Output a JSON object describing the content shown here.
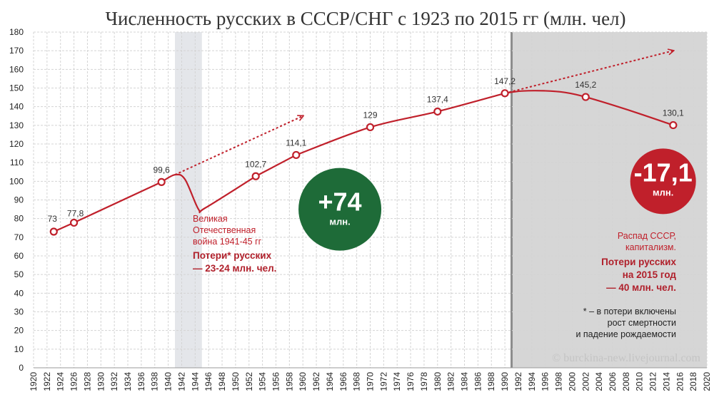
{
  "chart_data": {
    "type": "line",
    "title": "Численность русских в СССР/СНГ с 1923 по 2015 гг (млн. чел)",
    "xlim": [
      1920,
      2020
    ],
    "ylim": [
      0,
      180
    ],
    "x_ticks": [
      "1920",
      "1922",
      "1924",
      "1926",
      "1928",
      "1930",
      "1932",
      "1934",
      "1936",
      "1938",
      "1940",
      "1942",
      "1944",
      "1946",
      "1948",
      "1950",
      "1952",
      "1954",
      "1956",
      "1958",
      "1960",
      "1962",
      "1964",
      "1966",
      "1968",
      "1970",
      "1972",
      "1974",
      "1976",
      "1978",
      "1980",
      "1982",
      "1984",
      "1986",
      "1988",
      "1990",
      "1992",
      "1994",
      "1996",
      "1998",
      "2000",
      "2002",
      "2004",
      "2006",
      "2008",
      "2010",
      "2012",
      "2014",
      "2016",
      "2018",
      "2020"
    ],
    "y_ticks": [
      "0",
      "10",
      "20",
      "30",
      "40",
      "50",
      "60",
      "70",
      "80",
      "90",
      "100",
      "110",
      "120",
      "130",
      "140",
      "150",
      "160",
      "170",
      "180"
    ],
    "grid": true,
    "series": [
      {
        "points": [
          {
            "x": 1923,
            "y": 73,
            "label": "73"
          },
          {
            "x": 1926,
            "y": 77.8,
            "label": "77,8"
          },
          {
            "x": 1939,
            "y": 99.6,
            "label": "99,6"
          },
          {
            "x": 1953,
            "y": 102.7,
            "label": "102,7"
          },
          {
            "x": 1959,
            "y": 114.1,
            "label": "114,1"
          },
          {
            "x": 1970,
            "y": 129,
            "label": "129"
          },
          {
            "x": 1980,
            "y": 137.4,
            "label": "137,4"
          },
          {
            "x": 1990,
            "y": 147.2,
            "label": "147,2"
          },
          {
            "x": 2002,
            "y": 145.2,
            "label": "145,2"
          },
          {
            "x": 2015,
            "y": 130.1,
            "label": "130,1"
          }
        ]
      }
    ],
    "war_band": [
      1941,
      1945
    ],
    "post_soviet_band": [
      1991,
      2020
    ],
    "war_path": [
      {
        "x": 1939,
        "y": 99.6
      },
      {
        "x": 1941,
        "y": 103.5
      },
      {
        "x": 1942.5,
        "y": 101
      },
      {
        "x": 1944.5,
        "y": 85
      },
      {
        "x": 1945.5,
        "y": 85.7
      },
      {
        "x": 1953,
        "y": 102.7
      }
    ],
    "post_curve": [
      {
        "x": 1990,
        "y": 147.2
      },
      {
        "x": 1992.5,
        "y": 148.4
      },
      {
        "x": 1996,
        "y": 148.5
      },
      {
        "x": 1999,
        "y": 147.6
      },
      {
        "x": 2002,
        "y": 145.2
      },
      {
        "x": 2008,
        "y": 138.6
      },
      {
        "x": 2015,
        "y": 130.1
      }
    ],
    "trend_arrows": [
      {
        "from": {
          "x": 1941,
          "y": 103.5
        },
        "to": {
          "x": 1960,
          "y": 135
        }
      },
      {
        "from": {
          "x": 1990,
          "y": 147.2
        },
        "to": {
          "x": 2015,
          "y": 170
        }
      }
    ],
    "badges": [
      {
        "big": "+74",
        "small": "млн.",
        "color": "#1e6b38",
        "x": 1965.5,
        "y": 85
      },
      {
        "big": "-17,1",
        "small": "млн.",
        "color": "#c0202b",
        "x": 2013.5,
        "y": 100
      }
    ],
    "annotations": {
      "war": {
        "lines": [
          "Великая",
          "Отечественная",
          "война 1941-45 гг"
        ],
        "bold": [
          "Потери* русских",
          "— 23-24 млн. чел."
        ]
      },
      "collapse": {
        "lines": [
          "Распад СССР,",
          "капитализм."
        ],
        "bold": [
          "Потери русских",
          "на 2015 год",
          "— 40 млн. чел."
        ]
      },
      "footnote": [
        "* – в потери включены",
        "рост смертности",
        "и падение рождаемости"
      ]
    },
    "colors": {
      "line": "#c0202b",
      "grid": "#d4d4d4",
      "band_war": "#e4e6ea",
      "band_post": "#d6d6d6",
      "divider": "#8c8c8c",
      "annotation_light": "#c0202b",
      "annotation_bold": "#b0202b",
      "footnote": "#222222"
    }
  },
  "watermark": "© burckina-new.livejournal.com"
}
